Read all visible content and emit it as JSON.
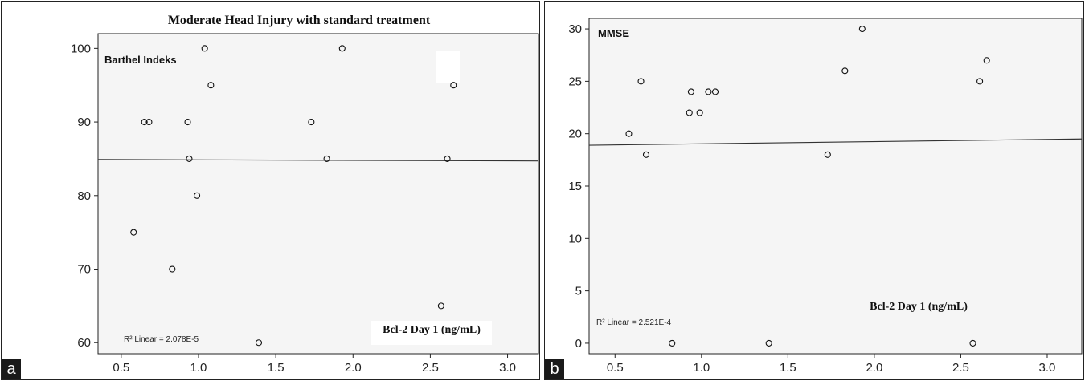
{
  "panels": [
    {
      "panel_label": "a",
      "title": "Moderate Head Injury with standard treatment",
      "inner_label": "Barthel Indeks",
      "xlabel": "Bcl-2 Day 1 (ng/mL)",
      "r2_label": "R² Linear = 2.078E-5"
    },
    {
      "panel_label": "b",
      "title": "",
      "inner_label": "MMSE",
      "xlabel": "Bcl-2 Day 1 (ng/mL)",
      "r2_label": "R² Linear = 2.521E-4"
    }
  ],
  "chart_data": [
    {
      "type": "scatter",
      "title": "Moderate Head Injury with standard treatment",
      "ylabel": "Barthel Indeks",
      "xlabel": "Bcl-2 Day 1 (ng/mL)",
      "xlim": [
        0.35,
        3.2
      ],
      "ylim": [
        58.5,
        102
      ],
      "xticks": [
        "0.5",
        "1.0",
        "1.5",
        "2.0",
        "2.5",
        "3.0"
      ],
      "yticks": [
        "60",
        "70",
        "80",
        "90",
        "100"
      ],
      "xtick_values": [
        0.5,
        1.0,
        1.5,
        2.0,
        2.5,
        3.0
      ],
      "ytick_values": [
        60,
        70,
        80,
        90,
        100
      ],
      "points": [
        {
          "x": 0.58,
          "y": 75
        },
        {
          "x": 0.65,
          "y": 90
        },
        {
          "x": 0.68,
          "y": 90
        },
        {
          "x": 0.83,
          "y": 70
        },
        {
          "x": 0.93,
          "y": 90
        },
        {
          "x": 0.94,
          "y": 85
        },
        {
          "x": 0.99,
          "y": 80
        },
        {
          "x": 1.04,
          "y": 100
        },
        {
          "x": 1.08,
          "y": 95
        },
        {
          "x": 1.39,
          "y": 60
        },
        {
          "x": 1.73,
          "y": 90
        },
        {
          "x": 1.83,
          "y": 85
        },
        {
          "x": 1.93,
          "y": 100
        },
        {
          "x": 2.57,
          "y": 65
        },
        {
          "x": 2.61,
          "y": 85
        },
        {
          "x": 2.65,
          "y": 95
        }
      ],
      "fit_line": {
        "x": [
          0.35,
          3.2
        ],
        "y": [
          84.9,
          84.7
        ]
      },
      "r2": "R² Linear = 2.078E-5",
      "grid": false
    },
    {
      "type": "scatter",
      "title": "",
      "ylabel": "MMSE",
      "xlabel": "Bcl-2 Day 1 (ng/mL)",
      "xlim": [
        0.35,
        3.2
      ],
      "ylim": [
        -1,
        31
      ],
      "xticks": [
        "0.5",
        "1.0",
        "1.5",
        "2.0",
        "2.5",
        "3.0"
      ],
      "yticks": [
        "0",
        "5",
        "10",
        "15",
        "20",
        "25",
        "30"
      ],
      "xtick_values": [
        0.5,
        1.0,
        1.5,
        2.0,
        2.5,
        3.0
      ],
      "ytick_values": [
        0,
        5,
        10,
        15,
        20,
        25,
        30
      ],
      "points": [
        {
          "x": 0.58,
          "y": 20
        },
        {
          "x": 0.65,
          "y": 25
        },
        {
          "x": 0.68,
          "y": 18
        },
        {
          "x": 0.83,
          "y": 0
        },
        {
          "x": 0.93,
          "y": 22
        },
        {
          "x": 0.94,
          "y": 24
        },
        {
          "x": 0.99,
          "y": 22
        },
        {
          "x": 1.04,
          "y": 24
        },
        {
          "x": 1.08,
          "y": 24
        },
        {
          "x": 1.39,
          "y": 0
        },
        {
          "x": 1.73,
          "y": 18
        },
        {
          "x": 1.83,
          "y": 26
        },
        {
          "x": 1.93,
          "y": 30
        },
        {
          "x": 2.57,
          "y": 0
        },
        {
          "x": 2.61,
          "y": 25
        },
        {
          "x": 2.65,
          "y": 27
        }
      ],
      "fit_line": {
        "x": [
          0.35,
          3.2
        ],
        "y": [
          18.9,
          19.5
        ]
      },
      "r2": "R² Linear = 2.521E-4",
      "grid": false
    }
  ]
}
